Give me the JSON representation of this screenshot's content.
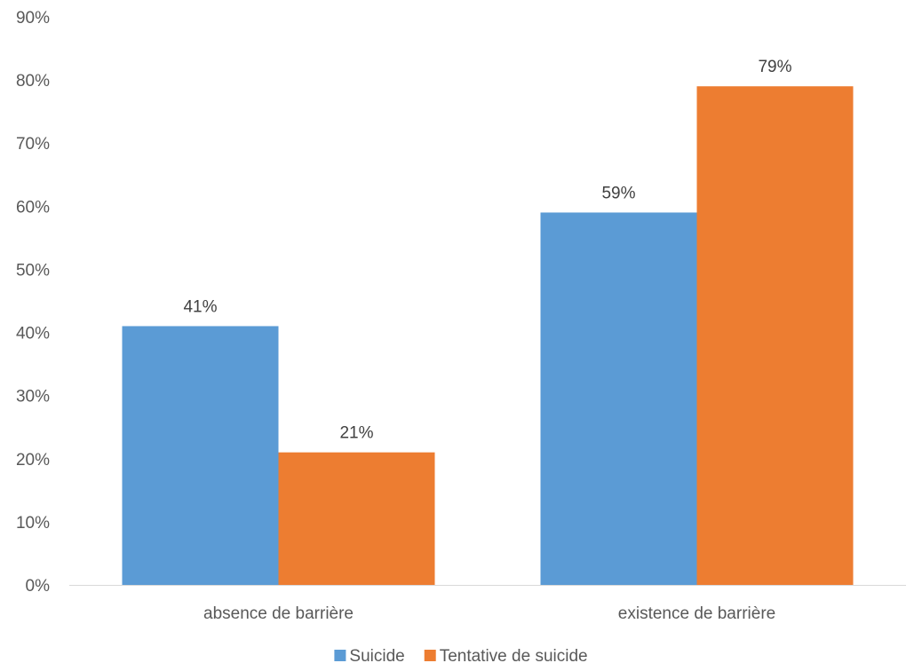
{
  "chart_data": {
    "type": "bar",
    "categories": [
      "absence de barrière",
      "existence de barrière"
    ],
    "series": [
      {
        "name": "Suicide",
        "values": [
          41,
          59
        ],
        "labels": [
          "41%",
          "59%"
        ],
        "color": "#5b9bd5"
      },
      {
        "name": "Tentative de suicide",
        "values": [
          21,
          79
        ],
        "labels": [
          "21%",
          "79%"
        ],
        "color": "#ed7d31"
      }
    ],
    "ylim": [
      0,
      90
    ],
    "yticks": [
      0,
      10,
      20,
      30,
      40,
      50,
      60,
      70,
      80,
      90
    ],
    "ytick_labels": [
      "0%",
      "10%",
      "20%",
      "30%",
      "40%",
      "50%",
      "60%",
      "70%",
      "80%",
      "90%"
    ],
    "grid": false,
    "legend": "bottom-center",
    "axis_color": "#d9d9d9"
  }
}
